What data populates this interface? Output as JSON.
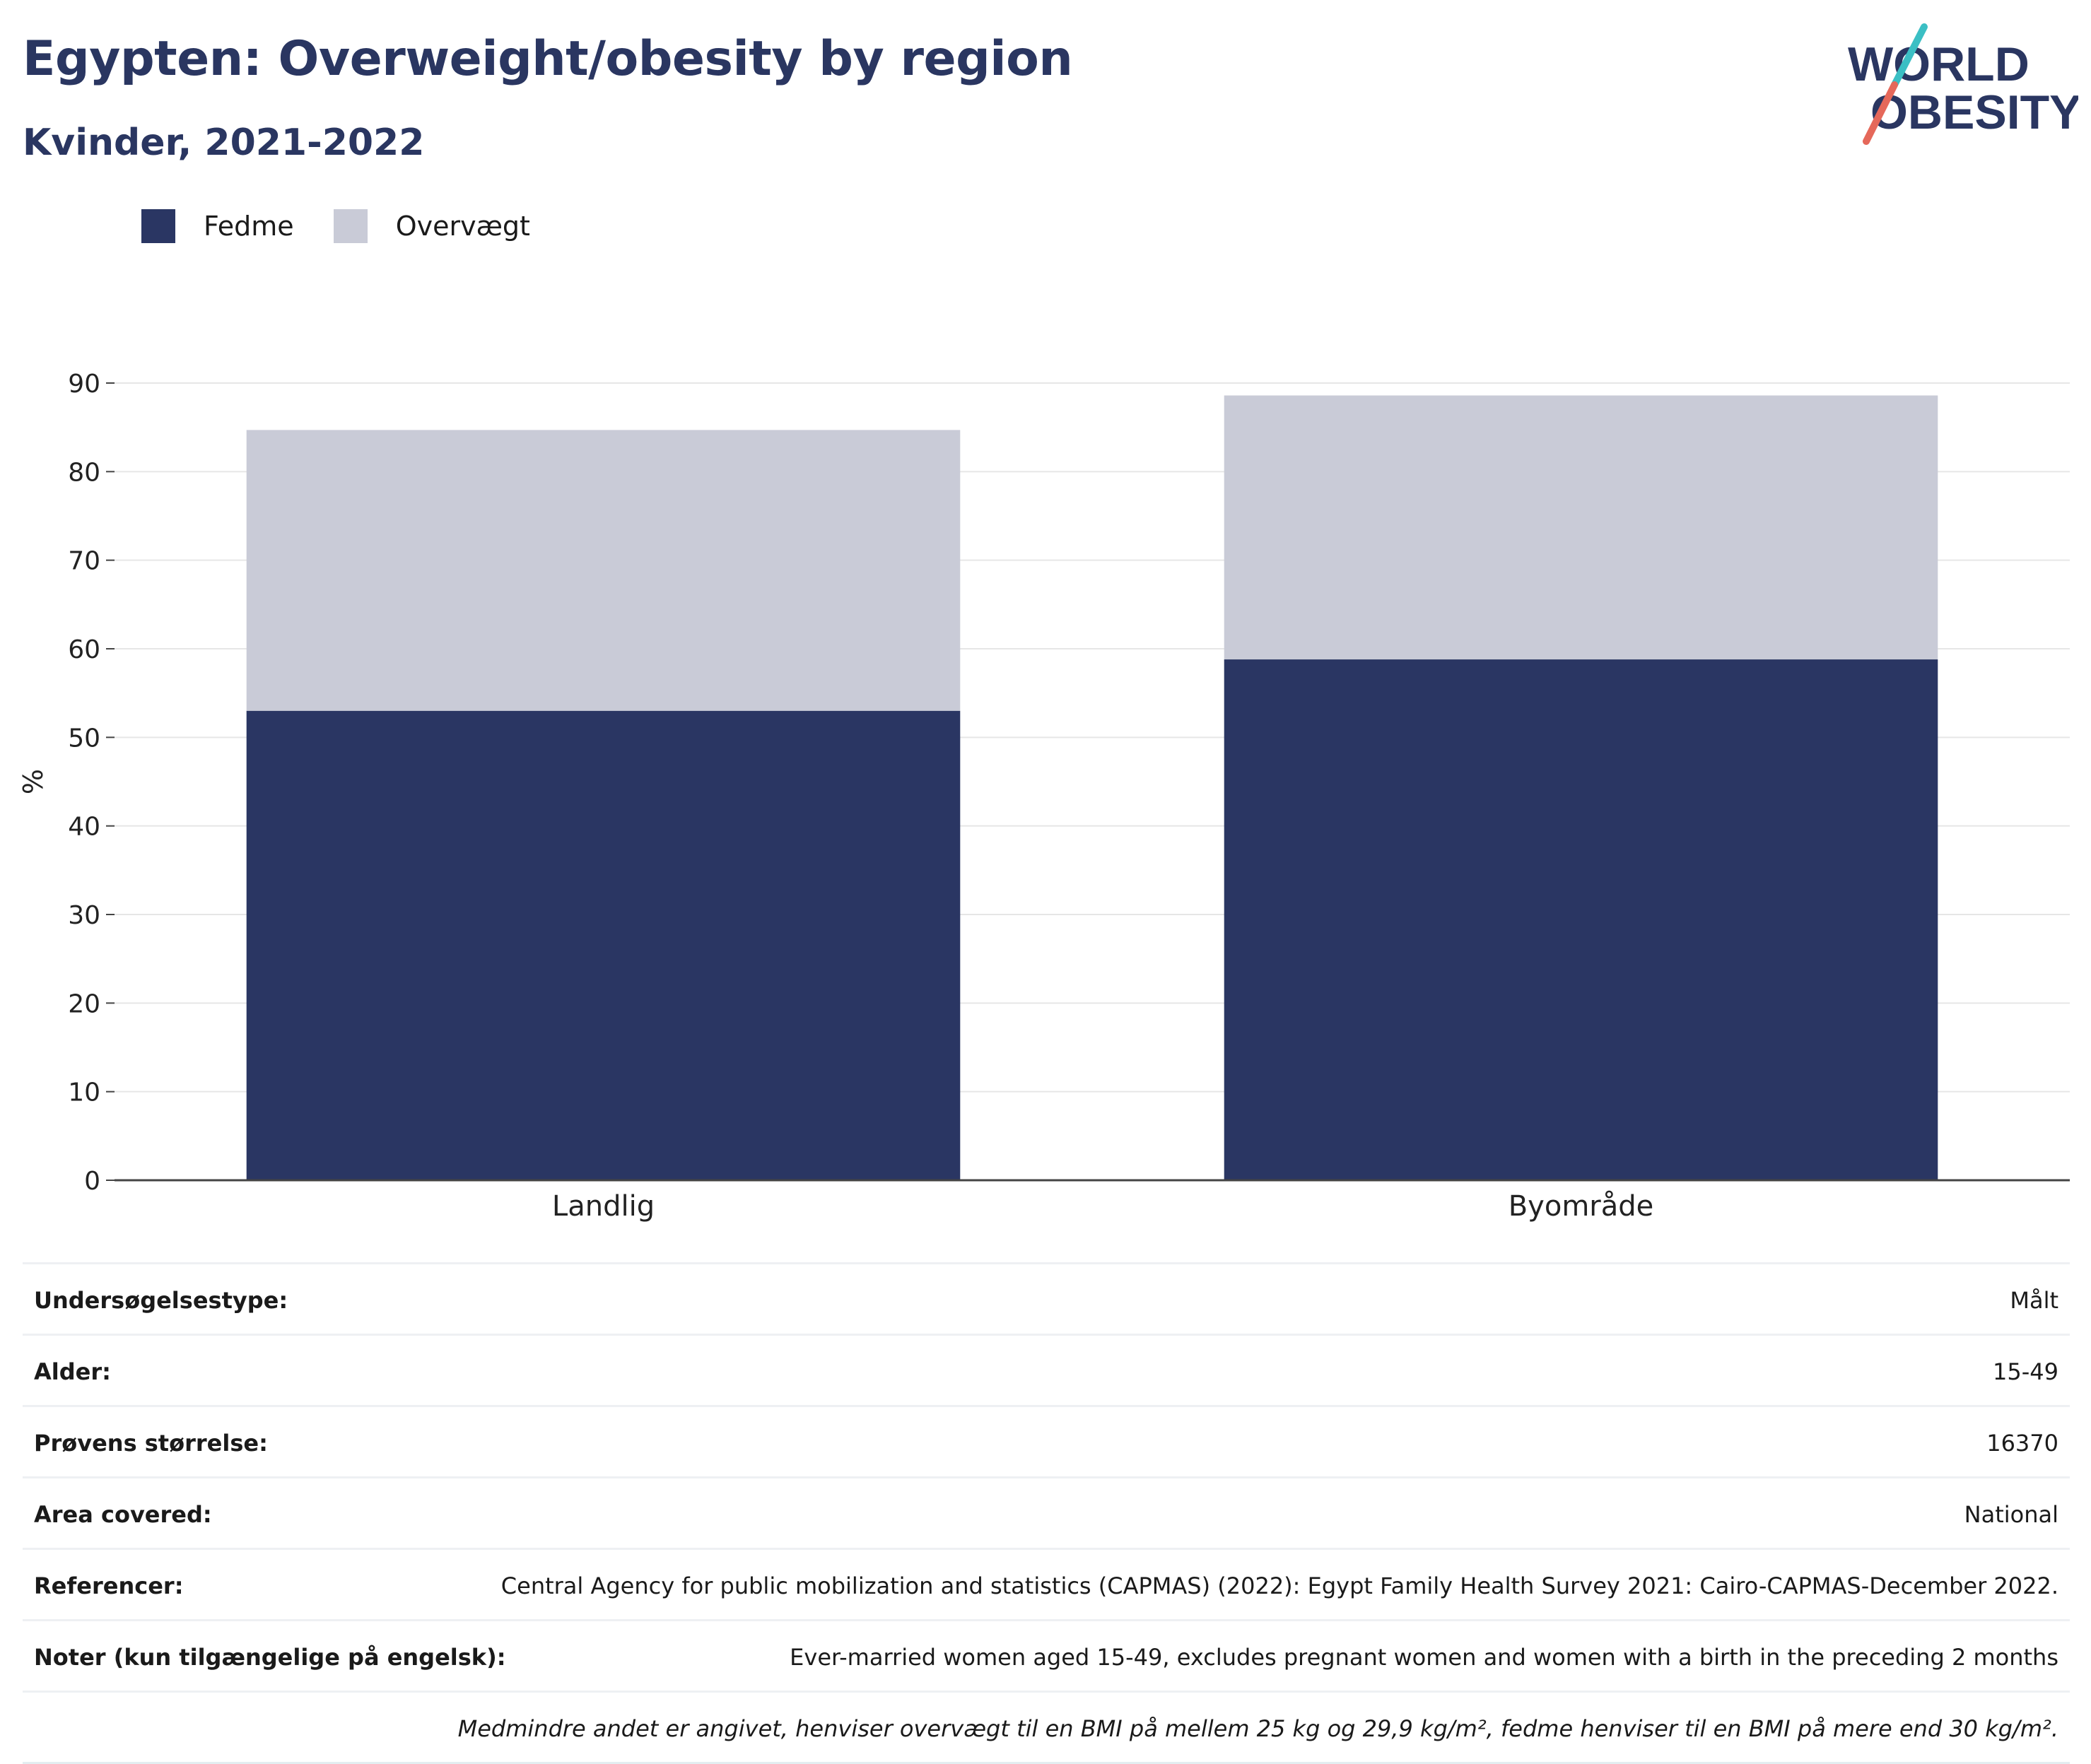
{
  "header": {
    "title": "Egypten: Overweight/obesity by region",
    "subtitle": "Kvinder, 2021-2022",
    "logo_line1": "WORLD",
    "logo_line2": "OBESITY"
  },
  "colors": {
    "title": "#2a3661",
    "fedme": "#2a3663",
    "overvaegt": "#c9cbd7",
    "grid": "#e6e6e6",
    "axis": "#444444",
    "logo_teal": "#3bbfc4",
    "logo_red": "#e5685a"
  },
  "chart_data": {
    "type": "bar",
    "stacked": true,
    "categories": [
      "Landlig",
      "Byområde"
    ],
    "series": [
      {
        "name": "Fedme",
        "values": [
          53.0,
          58.8
        ]
      },
      {
        "name": "Overvægt",
        "values": [
          31.7,
          29.8
        ]
      }
    ],
    "ylabel": "%",
    "ylim": [
      0,
      90
    ],
    "yticks": [
      0,
      10,
      20,
      30,
      40,
      50,
      60,
      70,
      80,
      90
    ],
    "grid": true,
    "legend": "top-left"
  },
  "info": [
    {
      "label": "Undersøgelsestype:",
      "value": "Målt"
    },
    {
      "label": "Alder:",
      "value": "15-49"
    },
    {
      "label": "Prøvens størrelse:",
      "value": "16370"
    },
    {
      "label": "Area covered:",
      "value": "National"
    },
    {
      "label": "Referencer:",
      "value": "Central Agency for public mobilization and statistics (CAPMAS) (2022): Egypt Family Health Survey 2021: Cairo-CAPMAS-December 2022."
    },
    {
      "label": "Noter (kun tilgængelige på engelsk):",
      "value": "Ever-married women aged 15-49, excludes pregnant women and women with a birth in the preceding 2 months"
    }
  ],
  "footnote": "Medmindre andet er angivet, henviser overvægt til en BMI på mellem 25 kg og 29,9 kg/m², fedme henviser til en BMI på mere end 30 kg/m²."
}
